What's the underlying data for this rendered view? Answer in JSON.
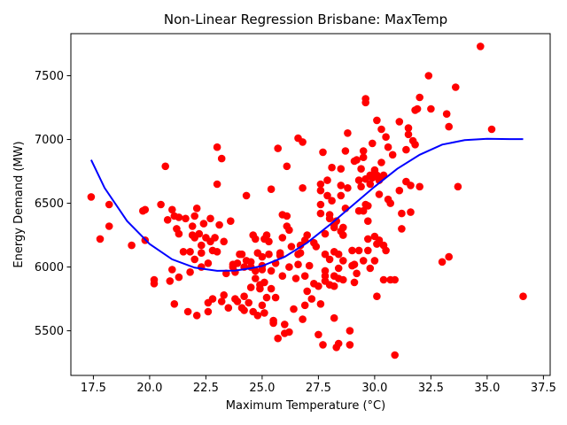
{
  "chart_data": {
    "type": "scatter",
    "title": "Non-Linear Regression Brisbane: MaxTemp",
    "xlabel": "Maximum Temperature (°C)",
    "ylabel": "Energy Demand (MW)",
    "xlim": [
      16.5,
      37.8
    ],
    "ylim": [
      5150,
      7830
    ],
    "grid": false,
    "legend": "none",
    "xticks": [
      17.5,
      20.0,
      22.5,
      25.0,
      27.5,
      30.0,
      32.5,
      35.0,
      37.5
    ],
    "xtick_labels": [
      "17.5",
      "20.0",
      "22.5",
      "25.0",
      "27.5",
      "30.0",
      "32.5",
      "35.0",
      "37.5"
    ],
    "yticks": [
      5500,
      6000,
      6500,
      7000,
      7500
    ],
    "ytick_labels": [
      "5500",
      "6000",
      "6500",
      "7000",
      "7500"
    ],
    "series": [
      {
        "kind": "scatter",
        "color": "#ff0000",
        "points": [
          [
            17.4,
            6550
          ],
          [
            17.8,
            6220
          ],
          [
            18.2,
            6490
          ],
          [
            18.2,
            6320
          ],
          [
            19.2,
            6170
          ],
          [
            19.7,
            6440
          ],
          [
            19.8,
            6450
          ],
          [
            19.8,
            6210
          ],
          [
            20.2,
            5900
          ],
          [
            20.2,
            5870
          ],
          [
            20.5,
            6490
          ],
          [
            20.7,
            6790
          ],
          [
            20.8,
            6370
          ],
          [
            20.9,
            5890
          ],
          [
            21.0,
            6450
          ],
          [
            21.1,
            6400
          ],
          [
            21.0,
            5980
          ],
          [
            21.1,
            5710
          ],
          [
            21.2,
            6300
          ],
          [
            21.3,
            6260
          ],
          [
            21.3,
            6390
          ],
          [
            21.3,
            5920
          ],
          [
            21.5,
            6120
          ],
          [
            21.6,
            6380
          ],
          [
            21.7,
            5650
          ],
          [
            21.8,
            6120
          ],
          [
            21.8,
            5960
          ],
          [
            21.9,
            6320
          ],
          [
            21.9,
            6250
          ],
          [
            22.0,
            6400
          ],
          [
            22.0,
            6060
          ],
          [
            22.0,
            6230
          ],
          [
            22.1,
            5620
          ],
          [
            22.1,
            6460
          ],
          [
            22.2,
            6260
          ],
          [
            22.3,
            6170
          ],
          [
            22.3,
            6110
          ],
          [
            22.3,
            6000
          ],
          [
            22.4,
            6340
          ],
          [
            22.5,
            6230
          ],
          [
            22.6,
            5720
          ],
          [
            22.6,
            5650
          ],
          [
            22.6,
            6030
          ],
          [
            22.7,
            6200
          ],
          [
            22.7,
            6380
          ],
          [
            22.8,
            6130
          ],
          [
            22.9,
            6230
          ],
          [
            23.0,
            6120
          ],
          [
            22.8,
            5750
          ],
          [
            23.0,
            6940
          ],
          [
            23.0,
            6650
          ],
          [
            23.1,
            6330
          ],
          [
            23.2,
            6850
          ],
          [
            23.2,
            5730
          ],
          [
            23.3,
            6200
          ],
          [
            23.3,
            5780
          ],
          [
            23.4,
            5950
          ],
          [
            23.5,
            5680
          ],
          [
            23.6,
            6360
          ],
          [
            23.7,
            6020
          ],
          [
            23.7,
            6000
          ],
          [
            23.8,
            5750
          ],
          [
            23.8,
            5960
          ],
          [
            23.9,
            6030
          ],
          [
            23.9,
            5730
          ],
          [
            24.0,
            6100
          ],
          [
            24.1,
            5680
          ],
          [
            24.1,
            6100
          ],
          [
            24.2,
            5660
          ],
          [
            24.2,
            5770
          ],
          [
            24.2,
            6000
          ],
          [
            24.3,
            6560
          ],
          [
            24.3,
            6050
          ],
          [
            24.4,
            5720
          ],
          [
            24.5,
            6000
          ],
          [
            24.5,
            5840
          ],
          [
            24.5,
            6040
          ],
          [
            24.6,
            5650
          ],
          [
            24.6,
            6250
          ],
          [
            24.7,
            5910
          ],
          [
            24.7,
            6220
          ],
          [
            24.7,
            5970
          ],
          [
            24.8,
            6110
          ],
          [
            24.8,
            5620
          ],
          [
            24.9,
            5830
          ],
          [
            24.9,
            5860
          ],
          [
            25.0,
            5700
          ],
          [
            25.0,
            6080
          ],
          [
            25.0,
            6010
          ],
          [
            25.0,
            5980
          ],
          [
            25.1,
            5640
          ],
          [
            25.1,
            5880
          ],
          [
            25.1,
            6220
          ],
          [
            25.2,
            6250
          ],
          [
            25.2,
            5760
          ],
          [
            25.3,
            6100
          ],
          [
            25.3,
            6200
          ],
          [
            25.4,
            6610
          ],
          [
            25.4,
            5830
          ],
          [
            25.4,
            5970
          ],
          [
            25.5,
            5560
          ],
          [
            25.5,
            5580
          ],
          [
            25.6,
            5760
          ],
          [
            25.6,
            6030
          ],
          [
            25.7,
            6930
          ],
          [
            25.7,
            5440
          ],
          [
            25.8,
            6090
          ],
          [
            25.8,
            6110
          ],
          [
            25.9,
            6410
          ],
          [
            25.9,
            6230
          ],
          [
            25.9,
            5930
          ],
          [
            26.0,
            5550
          ],
          [
            26.0,
            5480
          ],
          [
            26.1,
            6790
          ],
          [
            26.1,
            6400
          ],
          [
            26.1,
            6320
          ],
          [
            26.2,
            6290
          ],
          [
            26.2,
            6000
          ],
          [
            26.2,
            5490
          ],
          [
            26.3,
            6160
          ],
          [
            26.4,
            5670
          ],
          [
            26.5,
            5910
          ],
          [
            26.6,
            7010
          ],
          [
            26.6,
            6100
          ],
          [
            26.6,
            6020
          ],
          [
            26.7,
            6110
          ],
          [
            26.7,
            6170
          ],
          [
            26.8,
            5590
          ],
          [
            26.8,
            6980
          ],
          [
            26.8,
            6620
          ],
          [
            26.9,
            5930
          ],
          [
            26.9,
            5700
          ],
          [
            26.9,
            6210
          ],
          [
            27.0,
            6250
          ],
          [
            27.0,
            5810
          ],
          [
            27.1,
            6010
          ],
          [
            27.2,
            5750
          ],
          [
            27.3,
            5870
          ],
          [
            27.3,
            6190
          ],
          [
            27.4,
            6160
          ],
          [
            27.5,
            5470
          ],
          [
            27.5,
            5850
          ],
          [
            27.6,
            6650
          ],
          [
            27.6,
            6600
          ],
          [
            27.6,
            6420
          ],
          [
            27.6,
            6490
          ],
          [
            27.6,
            5710
          ],
          [
            27.7,
            6900
          ],
          [
            27.7,
            5390
          ],
          [
            27.8,
            6260
          ],
          [
            27.8,
            6100
          ],
          [
            27.8,
            5970
          ],
          [
            27.8,
            5930
          ],
          [
            27.8,
            5890
          ],
          [
            27.9,
            6680
          ],
          [
            27.9,
            6560
          ],
          [
            28.0,
            6410
          ],
          [
            28.0,
            6380
          ],
          [
            28.0,
            6060
          ],
          [
            28.0,
            5860
          ],
          [
            28.1,
            6780
          ],
          [
            28.1,
            6520
          ],
          [
            28.2,
            6330
          ],
          [
            28.2,
            6310
          ],
          [
            28.2,
            6120
          ],
          [
            28.2,
            5930
          ],
          [
            28.2,
            5850
          ],
          [
            28.2,
            5600
          ],
          [
            28.3,
            6360
          ],
          [
            28.3,
            5370
          ],
          [
            28.4,
            6100
          ],
          [
            28.4,
            5990
          ],
          [
            28.4,
            5910
          ],
          [
            28.4,
            5400
          ],
          [
            28.5,
            6770
          ],
          [
            28.5,
            6640
          ],
          [
            28.5,
            6560
          ],
          [
            28.5,
            6280
          ],
          [
            28.6,
            6310
          ],
          [
            28.6,
            6250
          ],
          [
            28.6,
            6050
          ],
          [
            28.6,
            5900
          ],
          [
            28.7,
            6910
          ],
          [
            28.7,
            6460
          ],
          [
            28.8,
            7050
          ],
          [
            28.8,
            6620
          ],
          [
            28.9,
            5500
          ],
          [
            28.9,
            5390
          ],
          [
            29.0,
            6130
          ],
          [
            29.0,
            6010
          ],
          [
            29.1,
            6830
          ],
          [
            29.1,
            6020
          ],
          [
            29.1,
            5880
          ],
          [
            29.2,
            6840
          ],
          [
            29.2,
            5950
          ],
          [
            29.3,
            6680
          ],
          [
            29.3,
            6440
          ],
          [
            29.3,
            6130
          ],
          [
            29.4,
            6770
          ],
          [
            29.4,
            6630
          ],
          [
            29.5,
            6910
          ],
          [
            29.5,
            6860
          ],
          [
            29.5,
            6440
          ],
          [
            29.5,
            6050
          ],
          [
            29.6,
            7320
          ],
          [
            29.6,
            7290
          ],
          [
            29.6,
            6690
          ],
          [
            29.6,
            6490
          ],
          [
            29.7,
            6480
          ],
          [
            29.7,
            6360
          ],
          [
            29.7,
            6220
          ],
          [
            29.7,
            6130
          ],
          [
            29.8,
            6720
          ],
          [
            29.8,
            6650
          ],
          [
            29.8,
            5990
          ],
          [
            29.9,
            6970
          ],
          [
            29.9,
            6700
          ],
          [
            30.0,
            6760
          ],
          [
            30.0,
            6240
          ],
          [
            30.0,
            6050
          ],
          [
            30.1,
            7150
          ],
          [
            30.1,
            6720
          ],
          [
            30.1,
            6180
          ],
          [
            30.1,
            5770
          ],
          [
            30.2,
            6680
          ],
          [
            30.2,
            6570
          ],
          [
            30.2,
            6210
          ],
          [
            30.3,
            7080
          ],
          [
            30.3,
            6820
          ],
          [
            30.4,
            6720
          ],
          [
            30.4,
            6170
          ],
          [
            30.4,
            5900
          ],
          [
            30.5,
            7020
          ],
          [
            30.5,
            6130
          ],
          [
            30.6,
            6940
          ],
          [
            30.6,
            6530
          ],
          [
            30.7,
            6500
          ],
          [
            30.7,
            5900
          ],
          [
            30.8,
            6880
          ],
          [
            30.9,
            5310
          ],
          [
            30.9,
            5900
          ],
          [
            31.1,
            7140
          ],
          [
            31.1,
            6600
          ],
          [
            31.2,
            6420
          ],
          [
            31.2,
            6300
          ],
          [
            31.4,
            6670
          ],
          [
            31.4,
            6920
          ],
          [
            31.5,
            7040
          ],
          [
            31.5,
            7090
          ],
          [
            31.6,
            6640
          ],
          [
            31.6,
            6430
          ],
          [
            31.7,
            6990
          ],
          [
            31.8,
            6960
          ],
          [
            31.8,
            7230
          ],
          [
            31.9,
            7240
          ],
          [
            32.0,
            7330
          ],
          [
            32.0,
            6630
          ],
          [
            32.4,
            7500
          ],
          [
            32.5,
            7240
          ],
          [
            33.0,
            6040
          ],
          [
            33.2,
            7200
          ],
          [
            33.3,
            7100
          ],
          [
            33.3,
            6080
          ],
          [
            33.6,
            7410
          ],
          [
            33.7,
            6630
          ],
          [
            34.7,
            7730
          ],
          [
            35.2,
            7080
          ],
          [
            36.6,
            5770
          ]
        ]
      },
      {
        "kind": "line",
        "color": "#0000ff",
        "x": [
          17.4,
          18.0,
          19.0,
          20.0,
          21.0,
          22.0,
          23.0,
          23.8,
          24.5,
          25.0,
          26.0,
          27.0,
          28.0,
          29.0,
          30.0,
          31.0,
          32.0,
          33.0,
          34.0,
          35.0,
          36.0,
          36.6
        ],
        "y": [
          6840,
          6620,
          6360,
          6180,
          6060,
          5995,
          5970,
          5972,
          5990,
          6008,
          6080,
          6190,
          6330,
          6480,
          6630,
          6770,
          6880,
          6960,
          6995,
          7005,
          7003,
          7003
        ]
      }
    ]
  }
}
